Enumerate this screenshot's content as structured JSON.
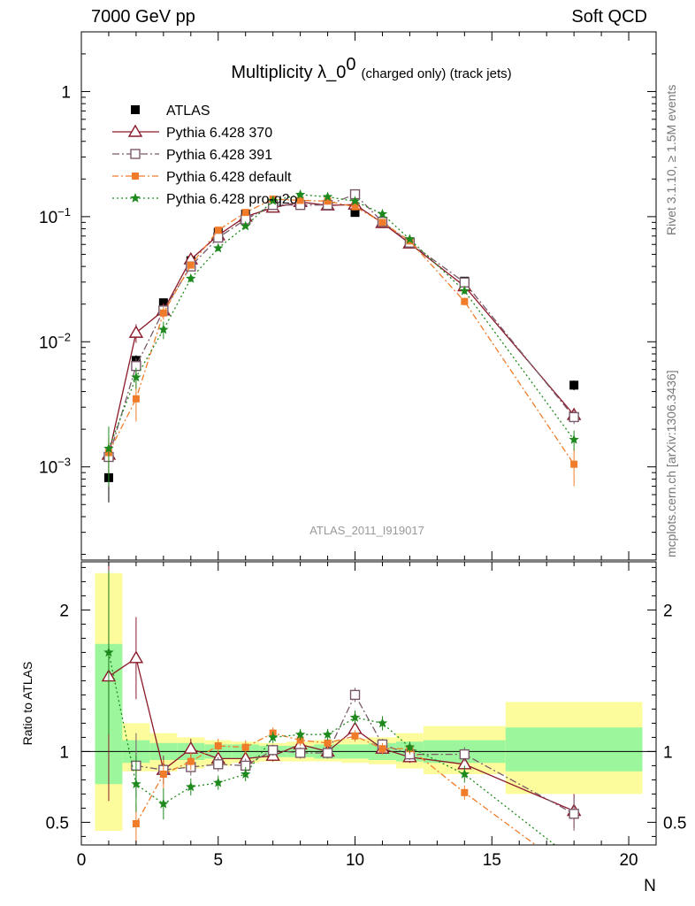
{
  "header": {
    "left": "7000 GeV pp",
    "right": "Soft QCD"
  },
  "side_labels": {
    "rivet": "Rivet 3.1.10, ≥ 1.5M events",
    "mcplots": "mcplots.cern.ch [arXiv:1306.3436]"
  },
  "chart_data": [
    {
      "type": "scatter",
      "title_main": "Multiplicity λ_0",
      "title_sup": "0",
      "title_sub": "(charged only) (track jets)",
      "watermark": "ATLAS_2011_I919017",
      "xlim": [
        0,
        21
      ],
      "ylim": [
        0.00018,
        3.0
      ],
      "yscale": "log",
      "ytick_labels": [
        "10−3",
        "10−2",
        "10−1",
        "1"
      ],
      "legend_position": "top-left",
      "series": [
        {
          "name": "ATLAS",
          "color": "#000000",
          "x": [
            1,
            2,
            3,
            4,
            5,
            6,
            7,
            8,
            9,
            10,
            11,
            12,
            14,
            18
          ],
          "y": [
            0.00082,
            0.0071,
            0.0205,
            0.0445,
            0.075,
            0.105,
            0.122,
            0.125,
            0.125,
            0.108,
            0.088,
            0.063,
            0.0305,
            0.0045
          ],
          "err": [
            0.0003,
            0.0007,
            0.0015,
            0.003,
            0.004,
            0.005,
            0.005,
            0.005,
            0.005,
            0.005,
            0.004,
            0.003,
            0.0015,
            0.0004
          ]
        },
        {
          "name": "Pythia 6.428 370",
          "color": "#8b1a2b",
          "x": [
            1,
            2,
            3,
            4,
            5,
            6,
            7,
            8,
            9,
            10,
            11,
            12,
            14,
            18
          ],
          "y": [
            0.00125,
            0.0118,
            0.0178,
            0.0455,
            0.071,
            0.1,
            0.118,
            0.131,
            0.123,
            0.125,
            0.089,
            0.061,
            0.0278,
            0.0026
          ],
          "err": [
            0.0004,
            0.002,
            0.002,
            0.002,
            0.003,
            0.003,
            0.003,
            0.004,
            0.004,
            0.004,
            0.003,
            0.002,
            0.0015,
            0.0003
          ]
        },
        {
          "name": "Pythia 6.428 391",
          "color": "#7a5a6a",
          "x": [
            1,
            2,
            3,
            4,
            5,
            6,
            7,
            8,
            9,
            10,
            11,
            12,
            14,
            18
          ],
          "y": [
            0.0012,
            0.0064,
            0.0178,
            0.04,
            0.068,
            0.095,
            0.124,
            0.124,
            0.124,
            0.151,
            0.091,
            0.062,
            0.0298,
            0.0025
          ],
          "err": [
            0.0004,
            0.001,
            0.002,
            0.002,
            0.003,
            0.003,
            0.003,
            0.004,
            0.004,
            0.004,
            0.003,
            0.002,
            0.0015,
            0.0003
          ]
        },
        {
          "name": "Pythia 6.428 default",
          "color": "#f07c2a",
          "x": [
            1,
            2,
            3,
            4,
            5,
            6,
            7,
            8,
            9,
            10,
            11,
            12,
            14,
            18
          ],
          "y": [
            0.0013,
            0.0035,
            0.017,
            0.041,
            0.078,
            0.108,
            0.138,
            0.135,
            0.133,
            0.12,
            0.09,
            0.064,
            0.021,
            0.00105
          ],
          "err": [
            0.0004,
            0.0012,
            0.002,
            0.002,
            0.003,
            0.003,
            0.003,
            0.004,
            0.004,
            0.004,
            0.003,
            0.002,
            0.0015,
            0.00035
          ]
        },
        {
          "name": "Pythia 6.428 pro-q2o",
          "color": "#1e8a1e",
          "x": [
            1,
            2,
            3,
            4,
            5,
            6,
            7,
            8,
            9,
            10,
            11,
            12,
            14,
            18
          ],
          "y": [
            0.0014,
            0.0052,
            0.0125,
            0.032,
            0.056,
            0.084,
            0.134,
            0.15,
            0.144,
            0.133,
            0.105,
            0.066,
            0.0255,
            0.00165
          ],
          "err": [
            0.0007,
            0.001,
            0.002,
            0.002,
            0.003,
            0.003,
            0.003,
            0.004,
            0.004,
            0.004,
            0.003,
            0.002,
            0.0015,
            0.0003
          ]
        }
      ]
    },
    {
      "type": "scatter",
      "ylabel": "Ratio to ATLAS",
      "xlabel": "N",
      "xlim": [
        0,
        21
      ],
      "ylim": [
        0.34,
        2.34
      ],
      "yticks": [
        0.5,
        1,
        2
      ],
      "ytick_labels": [
        "0.5",
        "1",
        "2"
      ],
      "xticks": [
        0,
        5,
        10,
        15,
        20
      ],
      "xtick_labels": [
        "0",
        "5",
        "10",
        "15",
        "20"
      ],
      "bands": {
        "stat_color": "#9cf79c",
        "total_color": "#fcfc9c",
        "bins": [
          {
            "x0": 0.5,
            "x1": 1.5,
            "stat": [
              0.77,
              1.76
            ],
            "total": [
              0.44,
              2.26
            ]
          },
          {
            "x0": 1.5,
            "x1": 2.5,
            "stat": [
              0.92,
              1.08
            ],
            "total": [
              0.86,
              1.2
            ]
          },
          {
            "x0": 2.5,
            "x1": 3.5,
            "stat": [
              0.94,
              1.06
            ],
            "total": [
              0.86,
              1.13
            ]
          },
          {
            "x0": 3.5,
            "x1": 4.5,
            "stat": [
              0.94,
              1.06
            ],
            "total": [
              0.88,
              1.1
            ]
          },
          {
            "x0": 4.5,
            "x1": 5.5,
            "stat": [
              0.95,
              1.05
            ],
            "total": [
              0.9,
              1.08
            ]
          },
          {
            "x0": 5.5,
            "x1": 6.5,
            "stat": [
              0.95,
              1.05
            ],
            "total": [
              0.92,
              1.07
            ]
          },
          {
            "x0": 6.5,
            "x1": 7.5,
            "stat": [
              0.96,
              1.04
            ],
            "total": [
              0.93,
              1.06
            ]
          },
          {
            "x0": 7.5,
            "x1": 8.5,
            "stat": [
              0.96,
              1.04
            ],
            "total": [
              0.93,
              1.07
            ]
          },
          {
            "x0": 8.5,
            "x1": 9.5,
            "stat": [
              0.95,
              1.05
            ],
            "total": [
              0.93,
              1.08
            ]
          },
          {
            "x0": 9.5,
            "x1": 10.5,
            "stat": [
              0.95,
              1.05
            ],
            "total": [
              0.92,
              1.09
            ]
          },
          {
            "x0": 10.5,
            "x1": 11.5,
            "stat": [
              0.94,
              1.06
            ],
            "total": [
              0.91,
              1.1
            ]
          },
          {
            "x0": 11.5,
            "x1": 12.5,
            "stat": [
              0.93,
              1.07
            ],
            "total": [
              0.88,
              1.13
            ]
          },
          {
            "x0": 12.5,
            "x1": 15.5,
            "stat": [
              0.92,
              1.08
            ],
            "total": [
              0.84,
              1.18
            ]
          },
          {
            "x0": 15.5,
            "x1": 20.5,
            "stat": [
              0.86,
              1.17
            ],
            "total": [
              0.7,
              1.35
            ]
          }
        ]
      },
      "series": [
        {
          "name": "Pythia 6.428 370",
          "color": "#8b1a2b",
          "x": [
            1,
            2,
            3,
            4,
            5,
            6,
            7,
            8,
            9,
            10,
            11,
            12,
            14,
            18
          ],
          "y": [
            1.53,
            1.66,
            0.87,
            1.02,
            0.95,
            0.95,
            0.97,
            1.05,
            1.0,
            1.16,
            1.02,
            0.96,
            0.91,
            0.58
          ],
          "err": [
            0.88,
            0.29,
            0.1,
            0.07,
            0.05,
            0.05,
            0.04,
            0.04,
            0.04,
            0.04,
            0.04,
            0.04,
            0.06,
            0.12
          ]
        },
        {
          "name": "Pythia 6.428 391",
          "color": "#7a5a6a",
          "x": [
            2,
            3,
            4,
            5,
            6,
            7,
            8,
            9,
            10,
            11,
            12,
            14,
            18
          ],
          "y": [
            0.9,
            0.87,
            0.89,
            0.91,
            0.9,
            1.01,
            0.99,
            0.99,
            1.4,
            1.05,
            0.98,
            0.98,
            0.56
          ],
          "err": [
            0.23,
            0.1,
            0.06,
            0.05,
            0.05,
            0.04,
            0.04,
            0.04,
            0.05,
            0.04,
            0.04,
            0.05,
            0.12
          ]
        },
        {
          "name": "Pythia 6.428 default",
          "color": "#f07c2a",
          "x": [
            2,
            3,
            4,
            5,
            6,
            7,
            8,
            9,
            10,
            11,
            12,
            14,
            16.6
          ],
          "y": [
            0.49,
            0.84,
            0.93,
            1.04,
            1.03,
            1.13,
            1.08,
            1.06,
            1.11,
            1.02,
            1.02,
            0.71,
            0.34
          ],
          "err": [
            0.14,
            0.1,
            0.06,
            0.05,
            0.05,
            0.04,
            0.04,
            0.04,
            0.04,
            0.04,
            0.04,
            0.05,
            0.0
          ]
        },
        {
          "name": "Pythia 6.428 pro-q2o",
          "color": "#1e8a1e",
          "x": [
            1,
            2,
            3,
            4,
            5,
            6,
            7,
            8,
            9,
            10,
            11,
            12,
            14,
            17.3
          ],
          "y": [
            1.7,
            0.77,
            0.63,
            0.75,
            0.78,
            0.84,
            1.1,
            1.12,
            1.12,
            1.24,
            1.2,
            1.03,
            0.84,
            0.34
          ],
          "err": [
            0.58,
            0.2,
            0.11,
            0.06,
            0.05,
            0.05,
            0.04,
            0.04,
            0.04,
            0.05,
            0.05,
            0.04,
            0.06,
            0.0
          ]
        }
      ]
    }
  ]
}
